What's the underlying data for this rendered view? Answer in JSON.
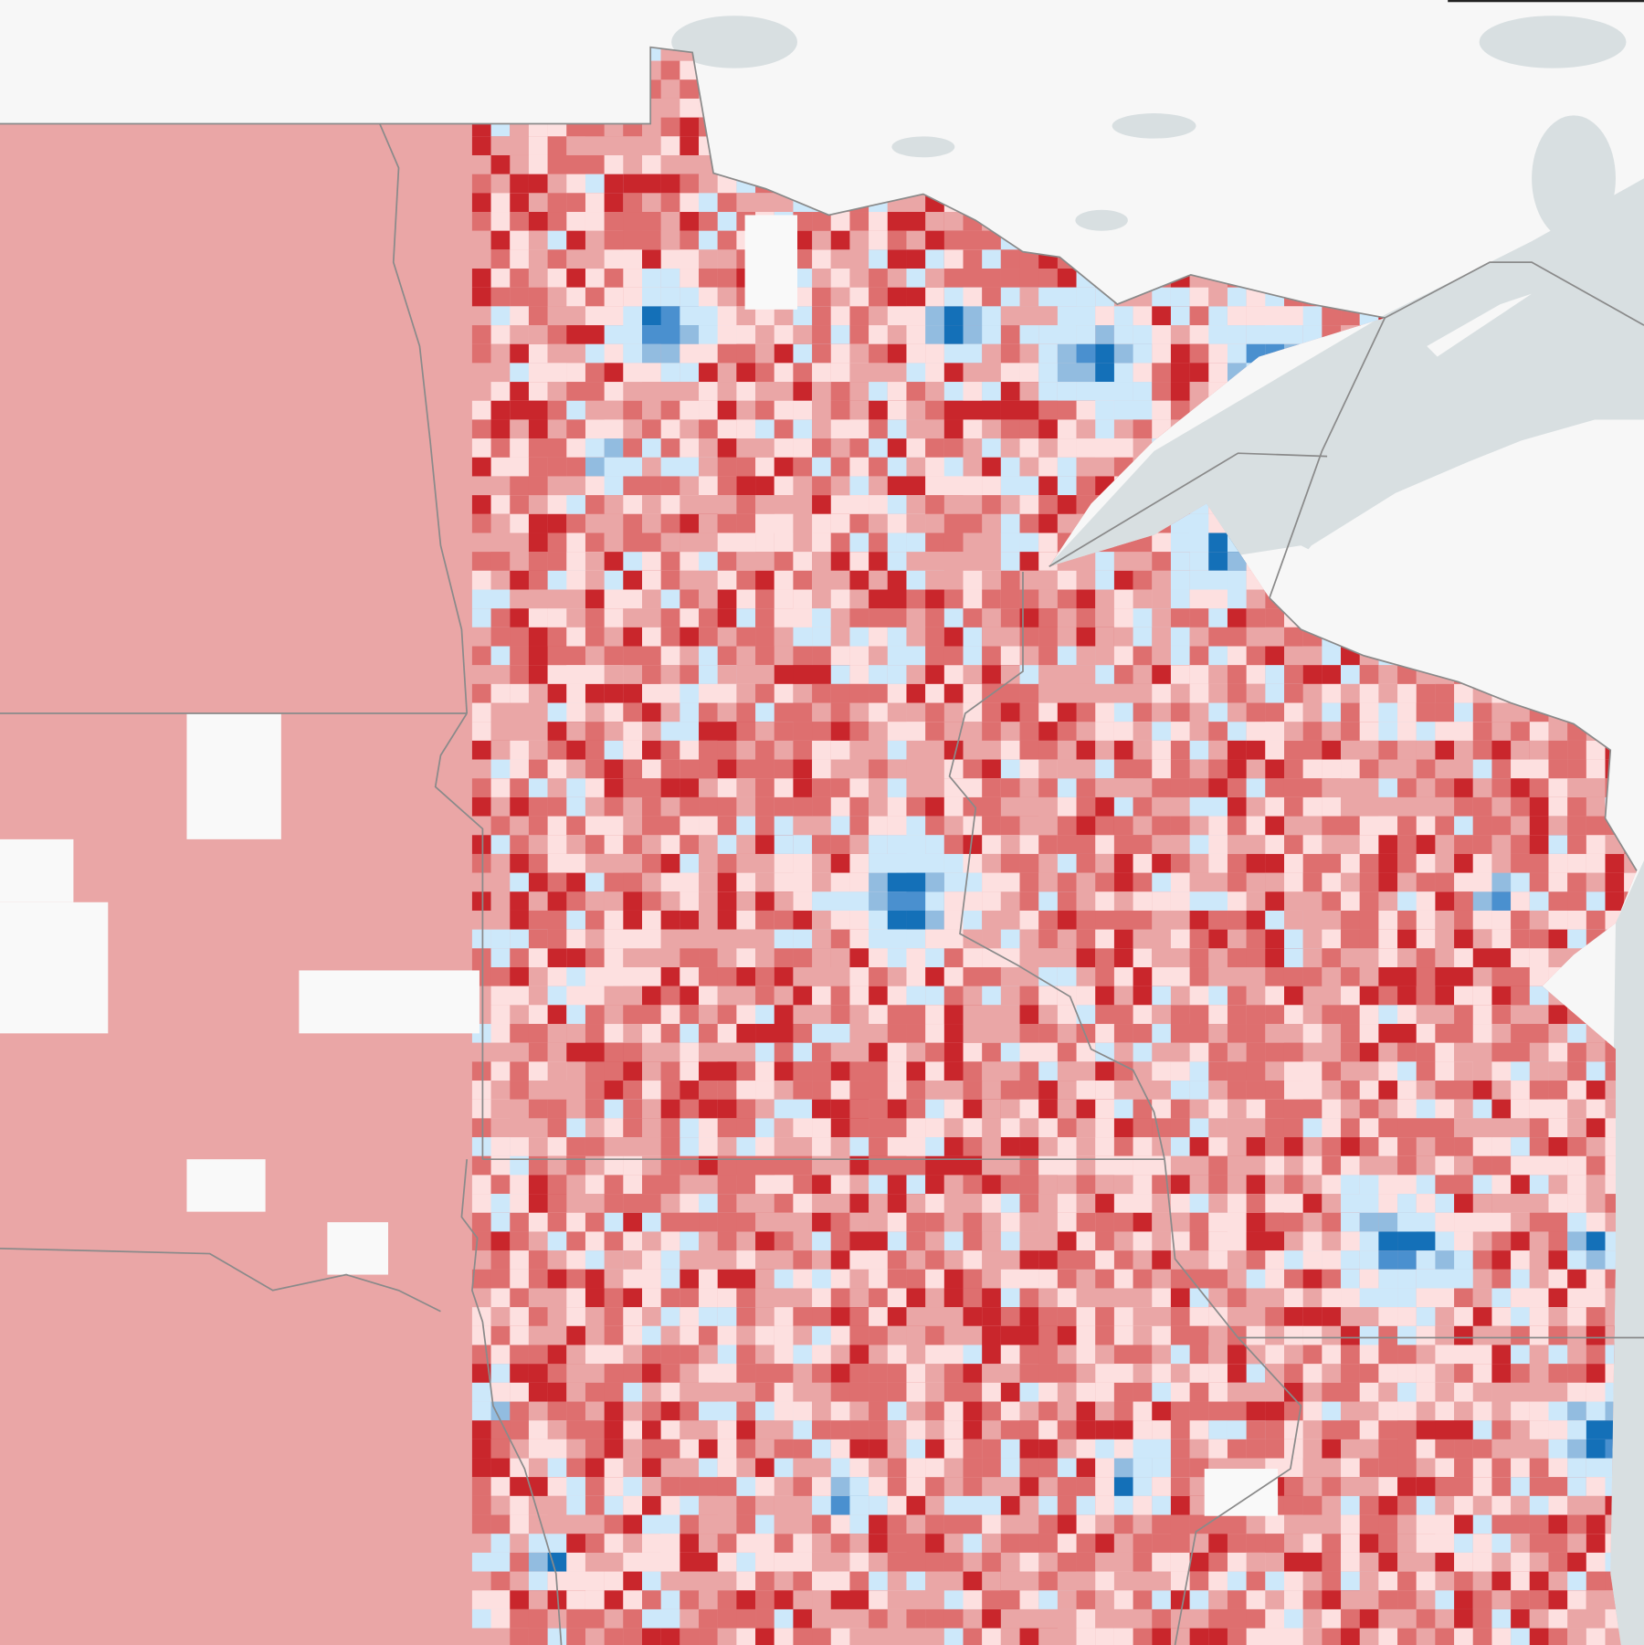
{
  "map": {
    "colors": {
      "background": "#f7f7f7",
      "water": "#d8dfe1",
      "border": "#8a8a8a",
      "no_data": "#f9f9f9",
      "rep_strong": "#c9262c",
      "rep_lean": "#de6f6f",
      "rep_slight": "#eaa6a6",
      "rep_tilt": "#fde0e0",
      "dem_tilt": "#cde8fa",
      "dem_slight": "#92bce0",
      "dem_lean": "#4a90cf",
      "dem_strong": "#1470b8"
    },
    "legend_order": [
      "rep_strong",
      "rep_lean",
      "rep_slight",
      "rep_tilt",
      "dem_tilt",
      "dem_slight",
      "dem_lean",
      "dem_strong"
    ]
  }
}
